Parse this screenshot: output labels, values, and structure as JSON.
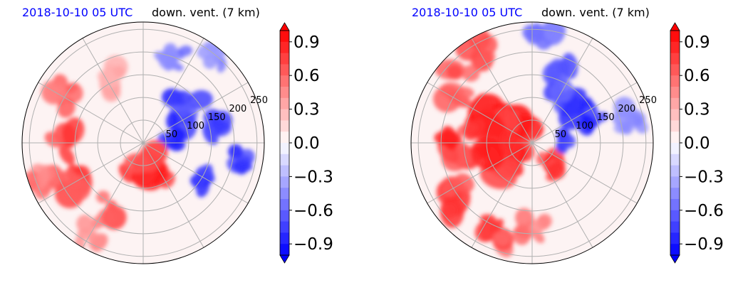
{
  "chart_data": [
    {
      "type": "polar-field",
      "date_label": "2018-10-10 05 UTC",
      "title": "down. vent. (7 km)",
      "radial_ticks": [
        50,
        100,
        150,
        200,
        250
      ],
      "r_max": 250,
      "colorbar": {
        "vmin": -1.0,
        "vmax": 1.0,
        "ticks": [
          0.9,
          0.6,
          0.3,
          0.0,
          -0.3,
          -0.6,
          -0.9
        ],
        "tick_labels": [
          "0.9",
          "0.6",
          "0.3",
          "0.0",
          "−0.3",
          "−0.6",
          "−0.9"
        ],
        "extend": "both",
        "colors": {
          "positive": "#ff0000",
          "neutral": "#ffffff",
          "negative": "#0000ff"
        }
      },
      "pattern": "east-north negative, west-south positive",
      "blobs": [
        {
          "theta_deg": 35,
          "r": 110,
          "value": -0.9,
          "size": 26
        },
        {
          "theta_deg": 15,
          "r": 150,
          "value": -0.9,
          "size": 22
        },
        {
          "theta_deg": -10,
          "r": 200,
          "value": -0.9,
          "size": 18
        },
        {
          "theta_deg": -30,
          "r": 150,
          "value": -0.9,
          "size": 18
        },
        {
          "theta_deg": 70,
          "r": 180,
          "value": -0.6,
          "size": 22
        },
        {
          "theta_deg": 5,
          "r": 60,
          "value": -0.9,
          "size": 16
        },
        {
          "theta_deg": 50,
          "r": 230,
          "value": -0.5,
          "size": 20
        },
        {
          "theta_deg": -60,
          "r": 60,
          "value": 0.9,
          "size": 30
        },
        {
          "theta_deg": -95,
          "r": 60,
          "value": 0.9,
          "size": 26
        },
        {
          "theta_deg": 180,
          "r": 170,
          "value": 0.8,
          "size": 24
        },
        {
          "theta_deg": 150,
          "r": 200,
          "value": 0.7,
          "size": 24
        },
        {
          "theta_deg": 210,
          "r": 180,
          "value": 0.8,
          "size": 26
        },
        {
          "theta_deg": 240,
          "r": 160,
          "value": 0.7,
          "size": 24
        },
        {
          "theta_deg": 200,
          "r": 230,
          "value": 0.6,
          "size": 20
        },
        {
          "theta_deg": 120,
          "r": 150,
          "value": 0.4,
          "size": 24
        },
        {
          "theta_deg": -120,
          "r": 220,
          "value": 0.5,
          "size": 22
        }
      ]
    },
    {
      "type": "polar-field",
      "date_label": "2018-10-10 05 UTC",
      "title": "down. vent. (7 km)",
      "radial_ticks": [
        50,
        100,
        150,
        200,
        250
      ],
      "r_max": 250,
      "colorbar": {
        "vmin": -1.0,
        "vmax": 1.0,
        "ticks": [
          0.9,
          0.6,
          0.3,
          0.0,
          -0.3,
          -0.6,
          -0.9
        ],
        "tick_labels": [
          "0.9",
          "0.6",
          "0.3",
          "0.0",
          "−0.3",
          "−0.6",
          "−0.9"
        ],
        "extend": "both",
        "colors": {
          "positive": "#ff0000",
          "neutral": "#ffffff",
          "negative": "#0000ff"
        }
      },
      "pattern": "strong positive west core, negative north-east",
      "blobs": [
        {
          "theta_deg": 165,
          "r": 40,
          "value": 1.0,
          "size": 40
        },
        {
          "theta_deg": 150,
          "r": 90,
          "value": 1.0,
          "size": 36
        },
        {
          "theta_deg": 200,
          "r": 80,
          "value": 1.0,
          "size": 34
        },
        {
          "theta_deg": 180,
          "r": 150,
          "value": 0.9,
          "size": 30
        },
        {
          "theta_deg": 140,
          "r": 190,
          "value": 0.8,
          "size": 28
        },
        {
          "theta_deg": 215,
          "r": 190,
          "value": 0.9,
          "size": 30
        },
        {
          "theta_deg": 245,
          "r": 200,
          "value": 0.8,
          "size": 26
        },
        {
          "theta_deg": 270,
          "r": 180,
          "value": 0.6,
          "size": 22
        },
        {
          "theta_deg": 120,
          "r": 220,
          "value": 0.8,
          "size": 24
        },
        {
          "theta_deg": -60,
          "r": 60,
          "value": 0.9,
          "size": 20
        },
        {
          "theta_deg": 40,
          "r": 110,
          "value": -0.9,
          "size": 26
        },
        {
          "theta_deg": 65,
          "r": 150,
          "value": -0.8,
          "size": 26
        },
        {
          "theta_deg": 20,
          "r": 130,
          "value": -0.9,
          "size": 18
        },
        {
          "theta_deg": 85,
          "r": 220,
          "value": -0.6,
          "size": 24
        },
        {
          "theta_deg": 15,
          "r": 210,
          "value": -0.5,
          "size": 20
        },
        {
          "theta_deg": 5,
          "r": 60,
          "value": -0.9,
          "size": 14
        }
      ]
    }
  ]
}
